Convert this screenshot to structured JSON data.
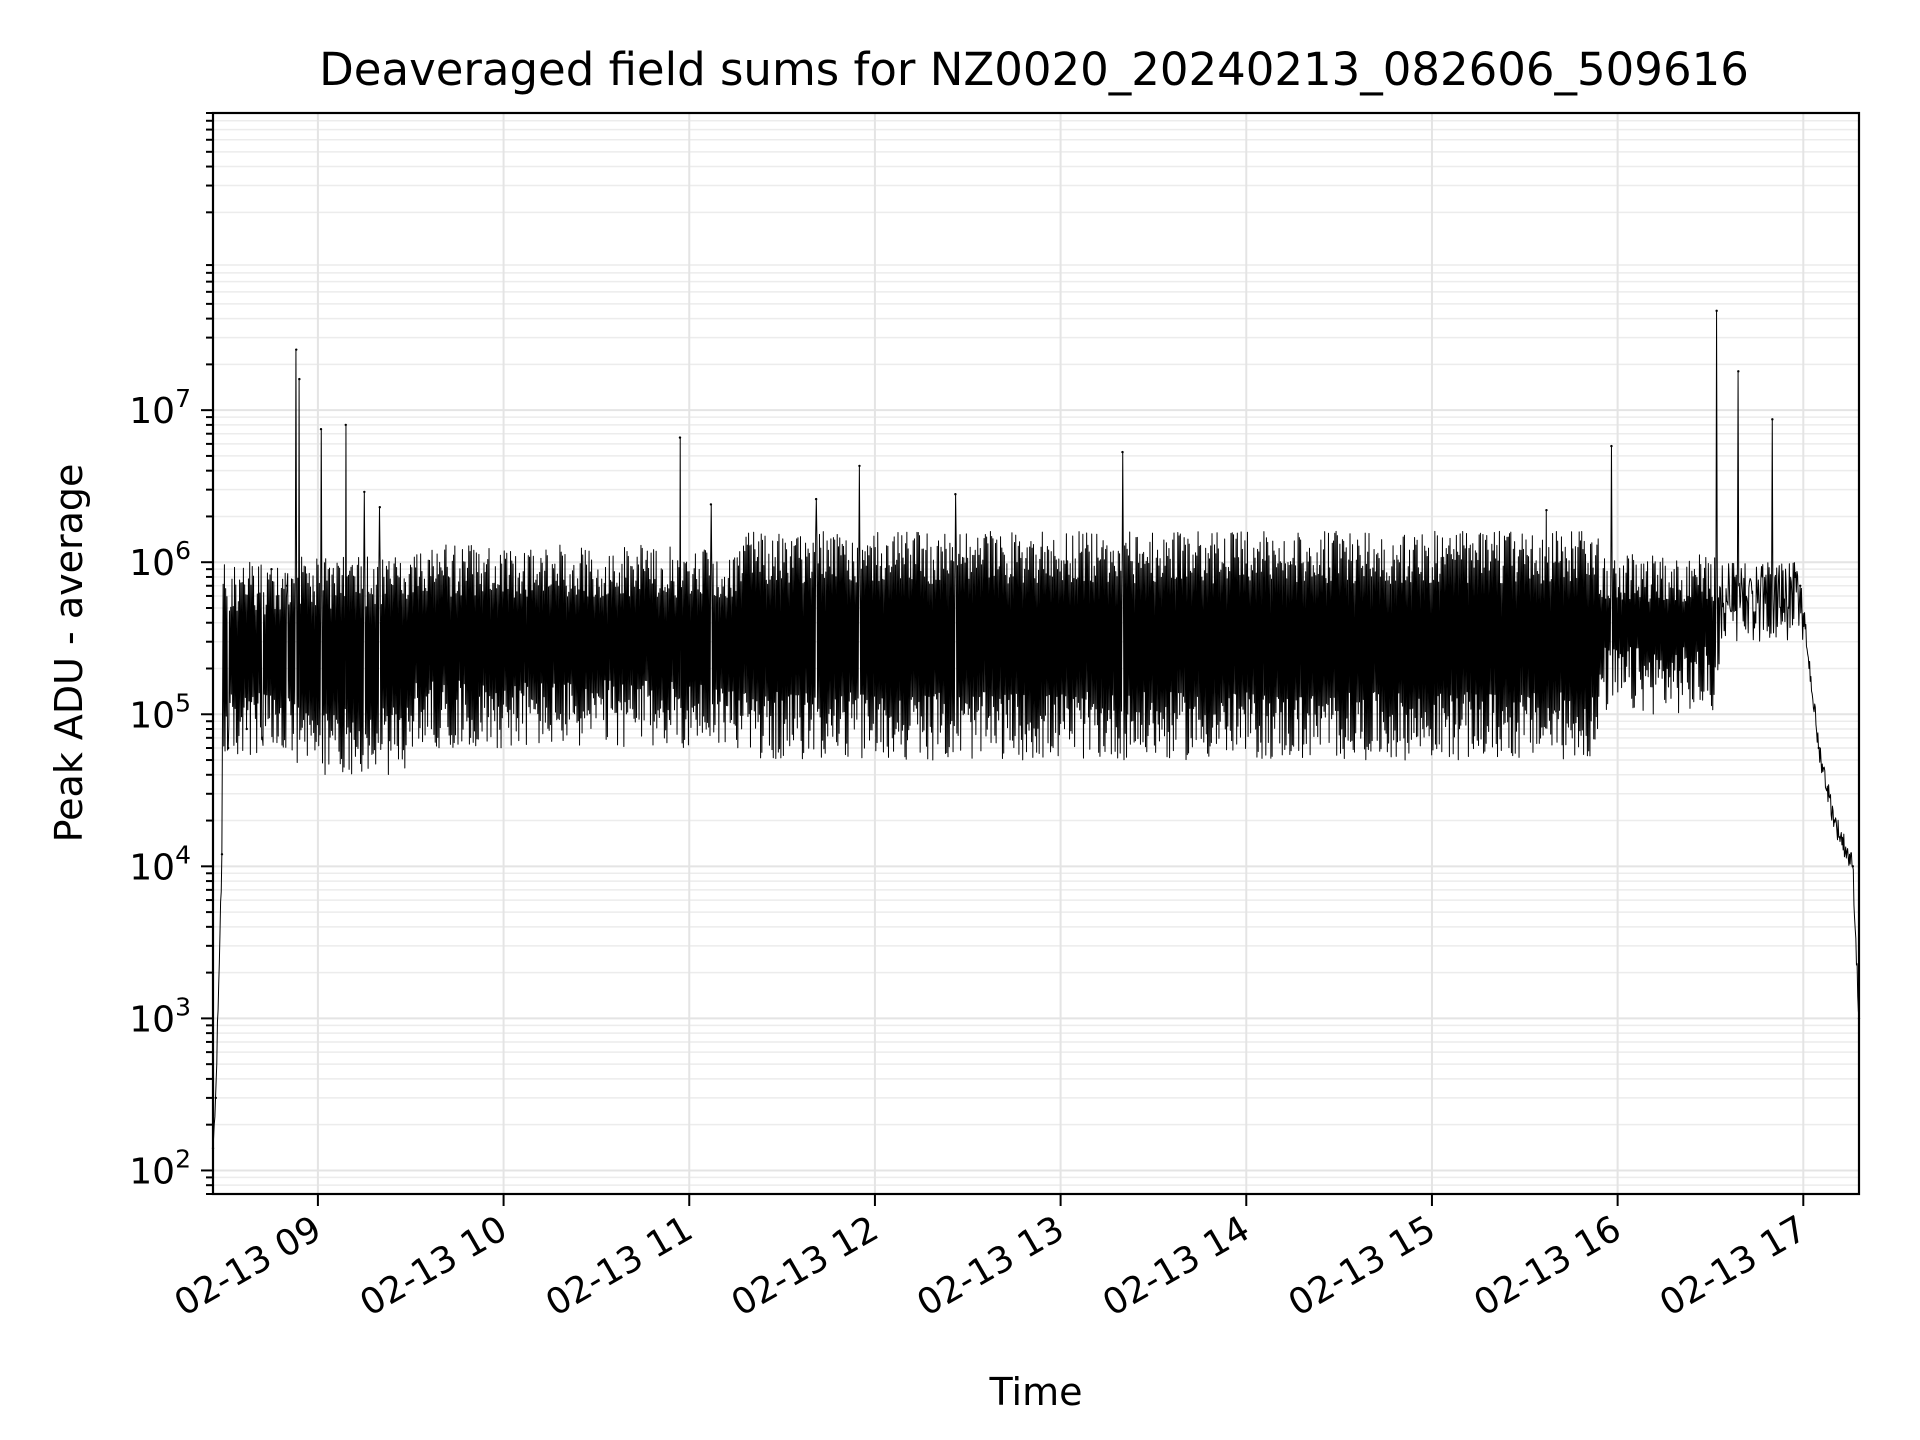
{
  "chart_data": {
    "type": "line",
    "title": "Deaveraged field sums for NZ0020_20240213_082606_509616",
    "xlabel": "Time",
    "ylabel": "Peak ADU - average",
    "x_axis": {
      "kind": "time",
      "range": [
        "2024-02-13T08:26:06",
        "2024-02-13T17:18:00"
      ],
      "ticks": [
        {
          "value": "2024-02-13T09:00:00",
          "label": "02-13 09"
        },
        {
          "value": "2024-02-13T10:00:00",
          "label": "02-13 10"
        },
        {
          "value": "2024-02-13T11:00:00",
          "label": "02-13 11"
        },
        {
          "value": "2024-02-13T12:00:00",
          "label": "02-13 12"
        },
        {
          "value": "2024-02-13T13:00:00",
          "label": "02-13 13"
        },
        {
          "value": "2024-02-13T14:00:00",
          "label": "02-13 14"
        },
        {
          "value": "2024-02-13T15:00:00",
          "label": "02-13 15"
        },
        {
          "value": "2024-02-13T16:00:00",
          "label": "02-13 16"
        },
        {
          "value": "2024-02-13T17:00:00",
          "label": "02-13 17"
        }
      ],
      "tick_rotation_deg": 30
    },
    "y_axis": {
      "scale": "log",
      "ylim": [
        70,
        900000000
      ],
      "ticks": [
        {
          "value": 100,
          "base": "10",
          "exp": "2"
        },
        {
          "value": 1000,
          "base": "10",
          "exp": "3"
        },
        {
          "value": 10000,
          "base": "10",
          "exp": "4"
        },
        {
          "value": 100000,
          "base": "10",
          "exp": "5"
        },
        {
          "value": 1000000,
          "base": "10",
          "exp": "6"
        },
        {
          "value": 10000000,
          "base": "10",
          "exp": "7"
        }
      ]
    },
    "grid": "major and minor",
    "series": [
      {
        "color": "#000000",
        "line_width": 1,
        "envelope_note": "dense noisy signal; the points listed below are the representative samples / peaks",
        "points": [
          {
            "x": "2024-02-13T08:26:06",
            "y": 140
          },
          {
            "x": "2024-02-13T08:27:00",
            "y": 300
          },
          {
            "x": "2024-02-13T08:29:00",
            "y": 12000
          },
          {
            "x": "2024-02-13T08:31:00",
            "y": 60000
          },
          {
            "x": "2024-02-13T08:37:00",
            "y": 80000
          },
          {
            "x": "2024-02-13T08:42:00",
            "y": 70000
          },
          {
            "x": "2024-02-13T08:45:00",
            "y": 900000
          },
          {
            "x": "2024-02-13T08:50:00",
            "y": 700000
          },
          {
            "x": "2024-02-13T08:53:00",
            "y": 25000000
          },
          {
            "x": "2024-02-13T08:54:00",
            "y": 16000000
          },
          {
            "x": "2024-02-13T09:01:00",
            "y": 7500000
          },
          {
            "x": "2024-02-13T09:09:00",
            "y": 8000000
          },
          {
            "x": "2024-02-13T09:15:00",
            "y": 2900000
          },
          {
            "x": "2024-02-13T09:20:00",
            "y": 2300000
          },
          {
            "x": "2024-02-13T10:57:00",
            "y": 6600000
          },
          {
            "x": "2024-02-13T11:07:00",
            "y": 2400000
          },
          {
            "x": "2024-02-13T11:41:00",
            "y": 2600000
          },
          {
            "x": "2024-02-13T11:55:00",
            "y": 4300000
          },
          {
            "x": "2024-02-13T12:26:00",
            "y": 2800000
          },
          {
            "x": "2024-02-13T13:20:00",
            "y": 5300000
          },
          {
            "x": "2024-02-13T15:37:00",
            "y": 2200000
          },
          {
            "x": "2024-02-13T15:58:00",
            "y": 5800000
          },
          {
            "x": "2024-02-13T16:32:00",
            "y": 45000000
          },
          {
            "x": "2024-02-13T16:39:00",
            "y": 18000000
          },
          {
            "x": "2024-02-13T16:50:00",
            "y": 8700000
          },
          {
            "x": "2024-02-13T16:59:00",
            "y": 700000
          },
          {
            "x": "2024-02-13T17:05:00",
            "y": 60000
          },
          {
            "x": "2024-02-13T17:10:00",
            "y": 20000
          },
          {
            "x": "2024-02-13T17:16:00",
            "y": 10000
          },
          {
            "x": "2024-02-13T17:18:00",
            "y": 1000
          }
        ]
      }
    ]
  }
}
